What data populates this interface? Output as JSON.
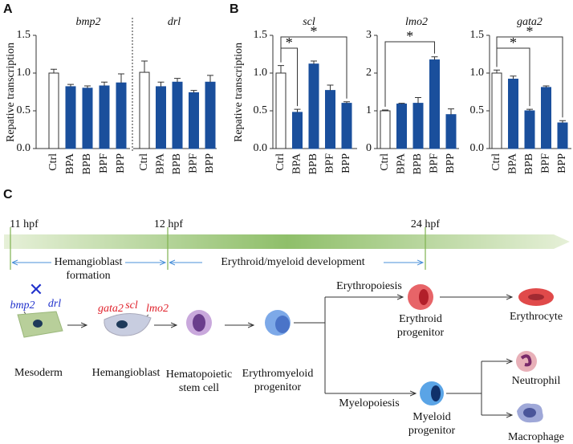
{
  "panel_labels": [
    "A",
    "B",
    "C"
  ],
  "chart_data": [
    {
      "type": "bar",
      "title": "bmp2",
      "ylabel": "Repative transcription",
      "categories": [
        "Ctrl",
        "BPA",
        "BPB",
        "BPF",
        "BPP"
      ],
      "values": [
        1.0,
        0.82,
        0.8,
        0.83,
        0.87
      ],
      "errors": [
        0.05,
        0.03,
        0.03,
        0.05,
        0.12
      ],
      "color": "#1a4f9c",
      "control_color": "#ffffff",
      "ylim": [
        0,
        1.5
      ],
      "yticks": [
        {
          "value": 0,
          "label": "0.0"
        },
        0.5,
        {
          "value": 1,
          "label": "1.0"
        },
        1.5
      ],
      "annotations": []
    },
    {
      "type": "bar",
      "title": "drl",
      "categories": [
        "Ctrl",
        "BPA",
        "BPB",
        "BPF",
        "BPP"
      ],
      "values": [
        1.01,
        0.82,
        0.88,
        0.74,
        0.88
      ],
      "errors": [
        0.15,
        0.06,
        0.05,
        0.03,
        0.09
      ],
      "color": "#1a4f9c",
      "control_color": "#ffffff",
      "ylim": [
        0,
        1.5
      ],
      "annotations": []
    },
    {
      "type": "bar",
      "title": "scl",
      "ylabel": "Repative transcription",
      "categories": [
        "Ctrl",
        "BPA",
        "BPB",
        "BPF",
        "BPP"
      ],
      "values": [
        1.0,
        0.48,
        1.12,
        0.77,
        0.6
      ],
      "errors": [
        0.1,
        0.04,
        0.04,
        0.07,
        0.02
      ],
      "color": "#1a4f9c",
      "control_color": "#ffffff",
      "ylim": [
        0,
        1.5
      ],
      "yticks": [
        {
          "value": 0,
          "label": "0.0"
        },
        0.5,
        {
          "value": 1,
          "label": "1.0"
        },
        1.5
      ],
      "annotations": [
        {
          "text": "*",
          "between": [
            "Ctrl",
            "BPA"
          ]
        },
        {
          "text": "*",
          "between": [
            "Ctrl",
            "BPP"
          ]
        }
      ]
    },
    {
      "type": "bar",
      "title": "lmo2",
      "categories": [
        "Ctrl",
        "BPA",
        "BPB",
        "BPF",
        "BPP"
      ],
      "values": [
        1.0,
        1.18,
        1.2,
        2.35,
        0.9
      ],
      "errors": [
        0.02,
        0.02,
        0.15,
        0.08,
        0.15
      ],
      "color": "#1a4f9c",
      "control_color": "#ffffff",
      "ylim": [
        0,
        3
      ],
      "yticks": [
        0,
        1,
        2,
        3
      ],
      "annotations": [
        {
          "text": "*",
          "between": [
            "Ctrl",
            "BPF"
          ]
        }
      ]
    },
    {
      "type": "bar",
      "title": "gata2",
      "categories": [
        "Ctrl",
        "BPA",
        "BPB",
        "BPF",
        "BPP"
      ],
      "values": [
        1.0,
        0.92,
        0.5,
        0.81,
        0.34
      ],
      "errors": [
        0.04,
        0.04,
        0.02,
        0.02,
        0.03
      ],
      "color": "#1a4f9c",
      "control_color": "#ffffff",
      "ylim": [
        0,
        1.5
      ],
      "yticks": [
        {
          "value": 0,
          "label": "0.0"
        },
        0.5,
        {
          "value": 1,
          "label": "1.0"
        },
        1.5
      ],
      "annotations": [
        {
          "text": "*",
          "between": [
            "Ctrl",
            "BPB"
          ]
        },
        {
          "text": "*",
          "between": [
            "Ctrl",
            "BPP"
          ]
        }
      ]
    }
  ],
  "diagram": {
    "timepoints": [
      "11 hpf",
      "12 hpf",
      "24 hpf"
    ],
    "phases": [
      "Hemangioblast\nformation",
      "Erythroid/myeloid development"
    ],
    "genes_mesoderm": [
      "bmp2",
      "drl"
    ],
    "genes_hemangioblast": [
      "gata2",
      "scl",
      "lmo2"
    ],
    "cells": [
      "Mesoderm",
      "Hemangioblast",
      "Hematopoietic\nstem cell",
      "Erythromyeloid\nprogenitor",
      "Erythroid\nprogenitor",
      "Erythrocyte",
      "Myeloid\nprogenitor",
      "Neutrophil",
      "Macrophage"
    ],
    "branches": [
      "Erythropoiesis",
      "Myelopoiesis"
    ]
  }
}
